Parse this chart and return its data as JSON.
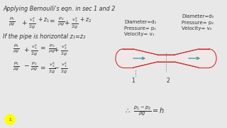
{
  "bg_color": "#e8e8e8",
  "text_color": "#333333",
  "pipe_color": "#cc3333",
  "arrow_color": "#339999",
  "label1_lines": [
    "Diameter=d₁",
    "Pressure= p₁",
    "Velocity= v₁"
  ],
  "label2_lines": [
    "Diameter=d₂",
    "Pressure= p₂",
    "Velocity= v₂"
  ],
  "heading": "Applying Bernoulli's eqn. in sec 1 and 2",
  "horiz_text": "If the pipe is horizontal z₁=z₂",
  "num1": "1",
  "num2": "2",
  "circle_color": "#ffff00",
  "circle_num": "1"
}
